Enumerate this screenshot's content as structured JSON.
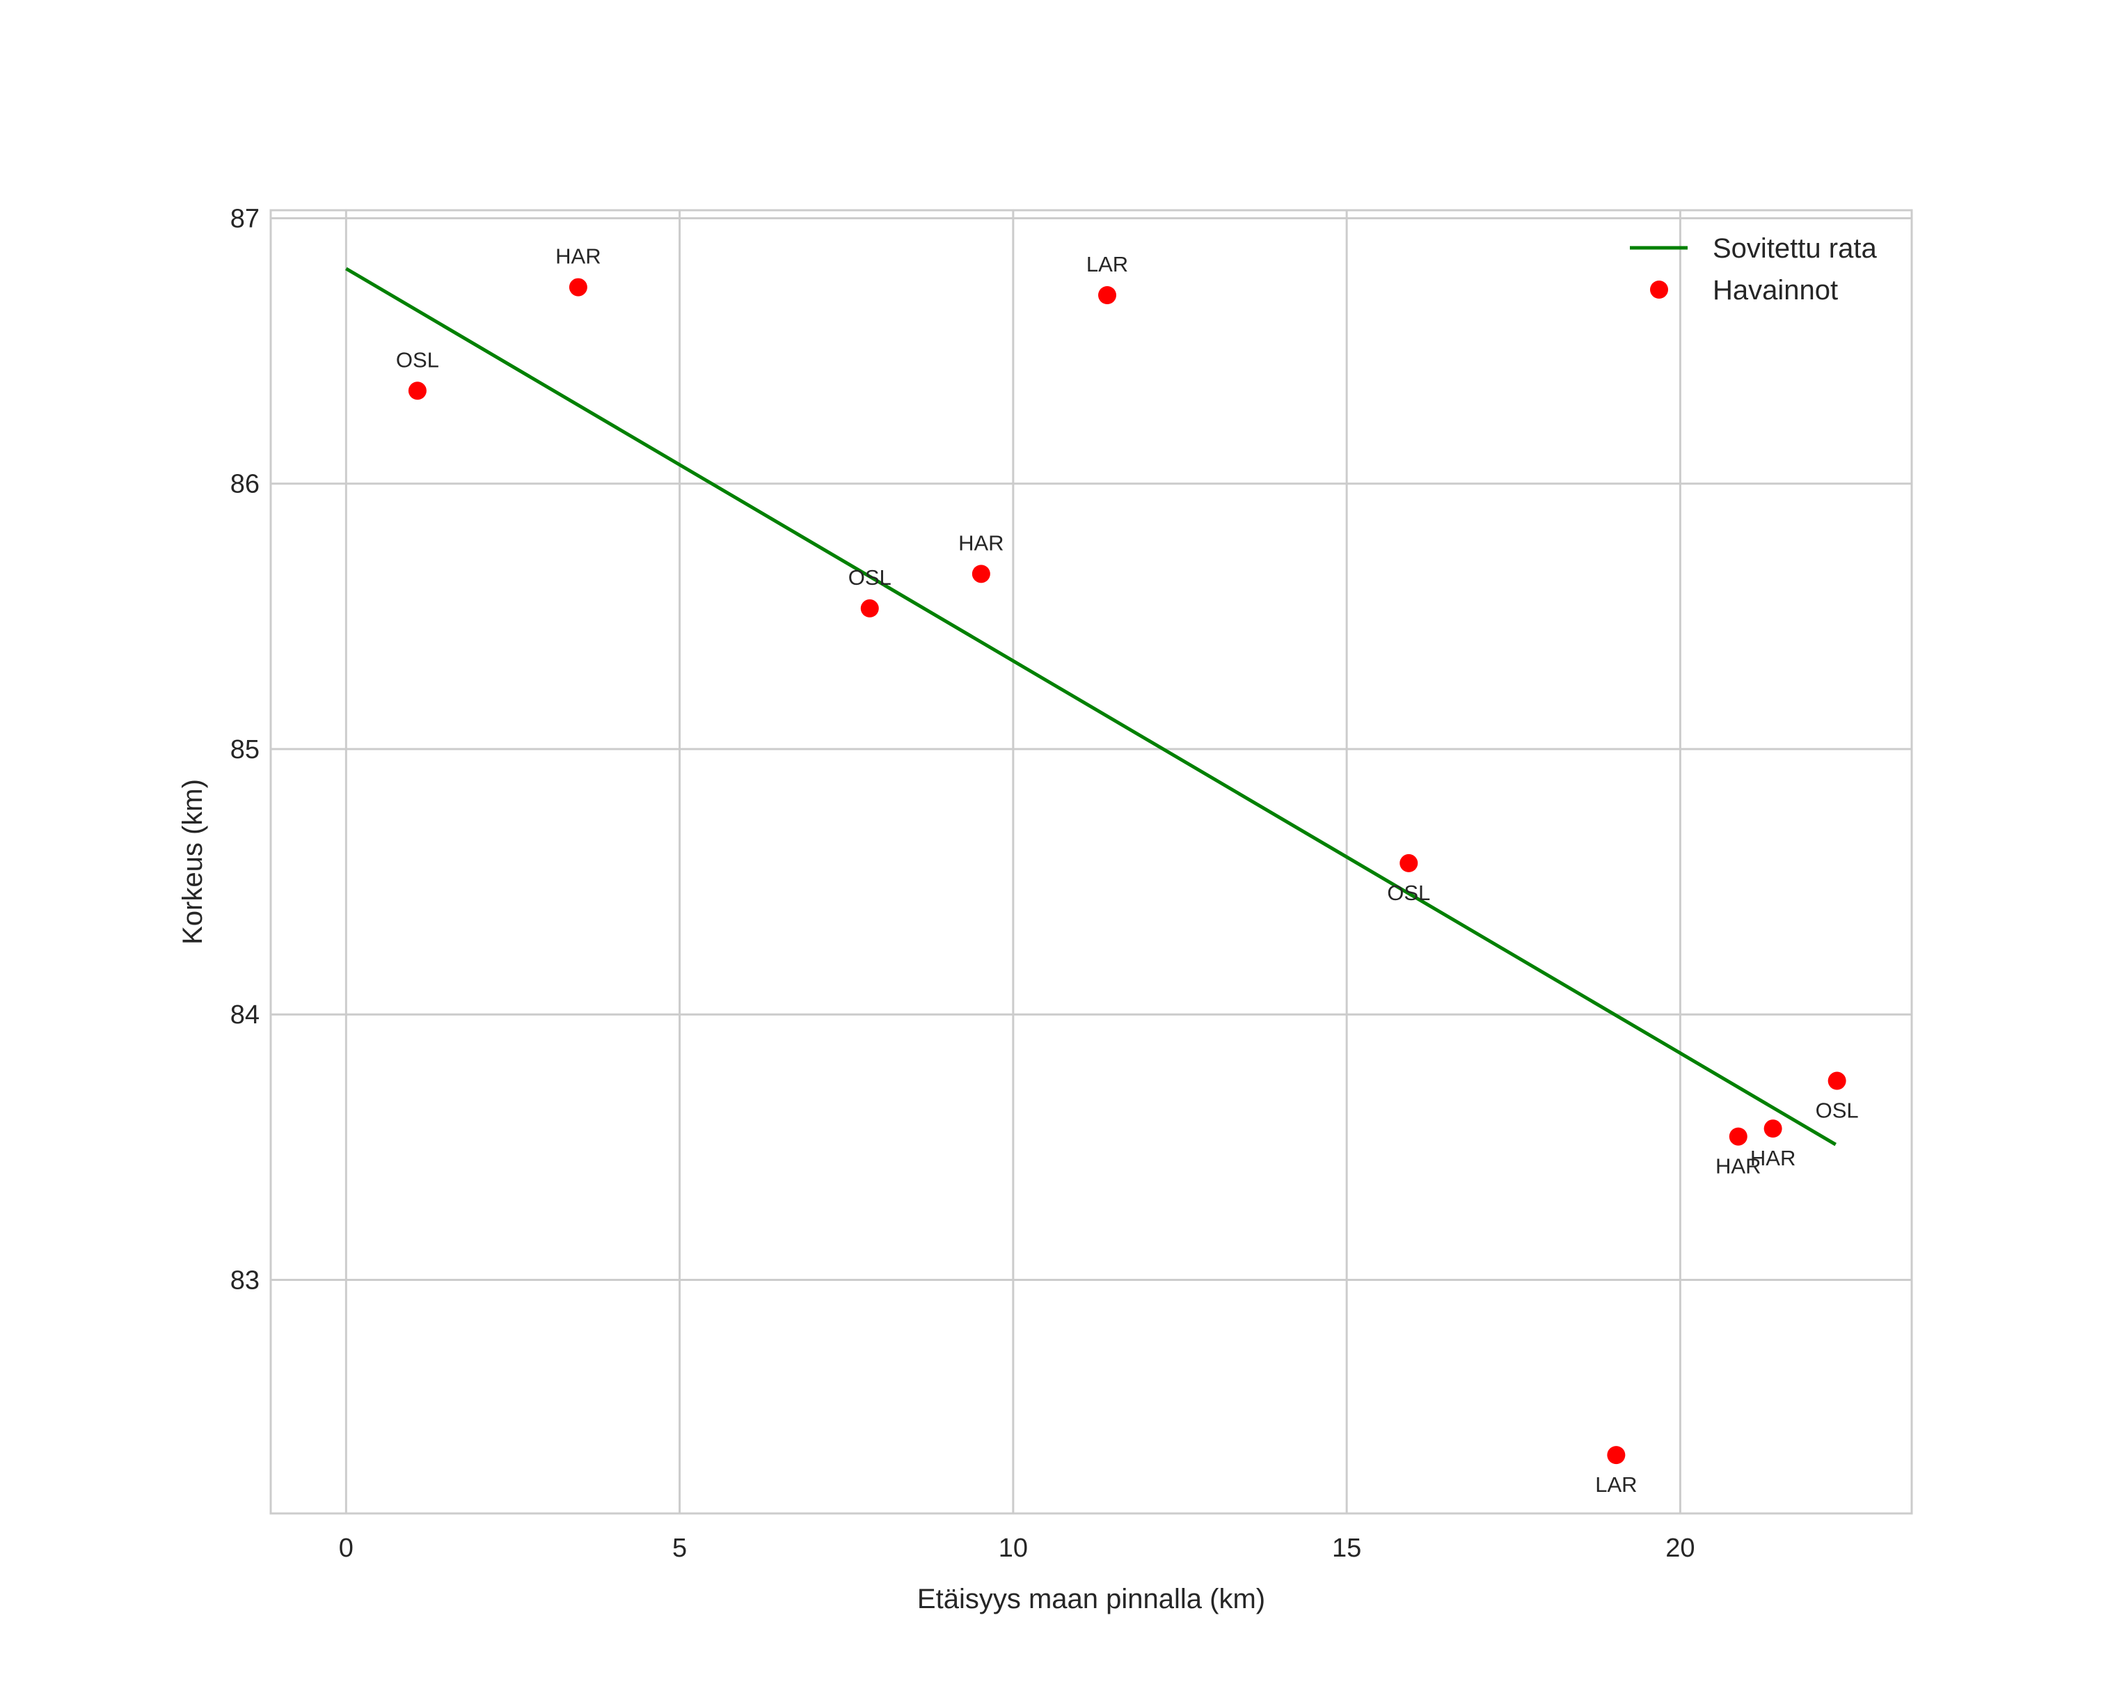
{
  "chart_data": {
    "type": "scatter",
    "title": "",
    "xlabel": "Etäisyys maan pinnalla (km)",
    "ylabel": "Korkeus (km)",
    "xlim": [
      -1.13,
      23.47
    ],
    "ylim": [
      82.12,
      87.03
    ],
    "xticks": [
      0,
      5,
      10,
      15,
      20
    ],
    "yticks": [
      83,
      84,
      85,
      86,
      87
    ],
    "grid": true,
    "legend_position": "top-right",
    "colors": {
      "fit": "#008000",
      "points": "#ff0000",
      "grid": "#cccccc",
      "frame": "#cccccc"
    },
    "series": [
      {
        "name": "Sovitettu rata",
        "type": "line",
        "x": [
          0,
          22.33
        ],
        "y": [
          86.81,
          83.51
        ]
      },
      {
        "name": "Havainnot",
        "type": "scatter",
        "points": [
          {
            "x": 1.07,
            "y": 86.35,
            "label": "OSL",
            "label_pos": "above"
          },
          {
            "x": 3.48,
            "y": 86.74,
            "label": "HAR",
            "label_pos": "above"
          },
          {
            "x": 7.85,
            "y": 85.53,
            "label": "OSL",
            "label_pos": "above"
          },
          {
            "x": 9.52,
            "y": 85.66,
            "label": "HAR",
            "label_pos": "above"
          },
          {
            "x": 11.41,
            "y": 86.71,
            "label": "LAR",
            "label_pos": "above"
          },
          {
            "x": 15.93,
            "y": 84.57,
            "label": "OSL",
            "label_pos": "below"
          },
          {
            "x": 19.04,
            "y": 82.34,
            "label": "LAR",
            "label_pos": "below"
          },
          {
            "x": 20.87,
            "y": 83.54,
            "label": "HAR",
            "label_pos": "below"
          },
          {
            "x": 21.39,
            "y": 83.57,
            "label": "HAR",
            "label_pos": "below"
          },
          {
            "x": 22.35,
            "y": 83.75,
            "label": "OSL",
            "label_pos": "below"
          }
        ]
      }
    ]
  }
}
